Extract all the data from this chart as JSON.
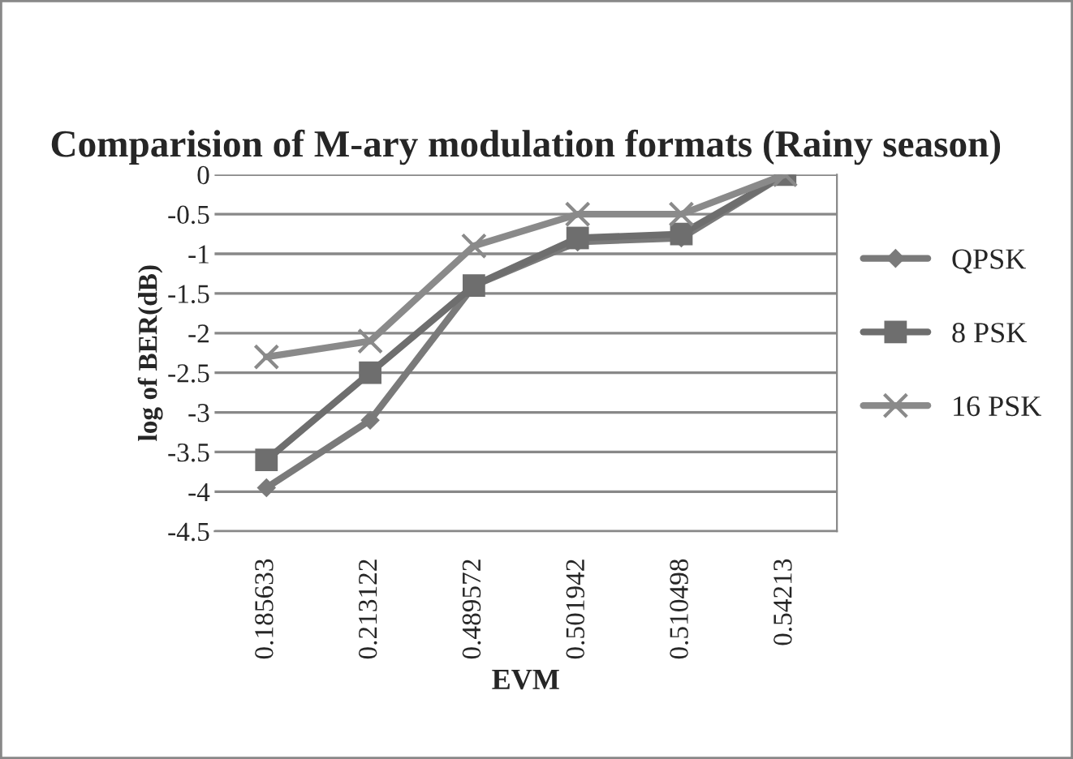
{
  "chart_data": {
    "type": "line",
    "title": "Comparision of M-ary modulation formats (Rainy season)",
    "xlabel": "EVM",
    "ylabel": "log of BER(dB)",
    "categories": [
      "0.185633",
      "0.213122",
      "0.489572",
      "0.501942",
      "0.510498",
      "0.54213"
    ],
    "series": [
      {
        "name": "QPSK",
        "color": "#7a7a7a",
        "marker": "diamond",
        "values": [
          -3.95,
          -3.1,
          -1.4,
          -0.85,
          -0.8,
          0
        ]
      },
      {
        "name": "8 PSK",
        "color": "#6e6e6e",
        "marker": "square",
        "values": [
          -3.6,
          -2.5,
          -1.4,
          -0.8,
          -0.75,
          0
        ]
      },
      {
        "name": "16 PSK",
        "color": "#8a8a8a",
        "marker": "cross",
        "values": [
          -2.3,
          -2.1,
          -0.9,
          -0.5,
          -0.5,
          0
        ]
      }
    ],
    "ylim": [
      -4.5,
      0
    ],
    "yticks": [
      0,
      -0.5,
      -1,
      -1.5,
      -2,
      -2.5,
      -3,
      -3.5,
      -4,
      -4.5
    ],
    "grid": "y",
    "legend": "right"
  }
}
